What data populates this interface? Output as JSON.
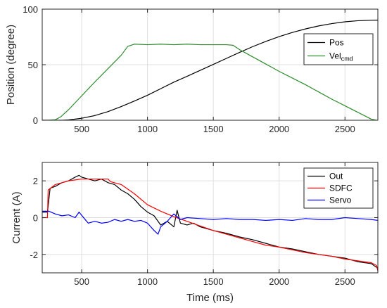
{
  "chart_data": [
    {
      "type": "line",
      "title": "",
      "xlabel": "",
      "ylabel": "Position (degree)",
      "xlim": [
        200,
        2750
      ],
      "ylim": [
        0,
        100
      ],
      "xticks": [
        500,
        1000,
        1500,
        2000,
        2500
      ],
      "yticks": [
        0,
        50,
        100
      ],
      "grid": true,
      "legend_position": "top-right",
      "series": [
        {
          "name": "Pos",
          "color": "#000000",
          "x": [
            200,
            350,
            400,
            500,
            600,
            700,
            800,
            900,
            1000,
            1100,
            1200,
            1300,
            1400,
            1500,
            1600,
            1700,
            1800,
            1900,
            2000,
            2100,
            2200,
            2300,
            2400,
            2500,
            2600,
            2700,
            2750
          ],
          "y": [
            0,
            0,
            0.3,
            1.8,
            4.2,
            7.8,
            12.3,
            17.3,
            22.5,
            28.4,
            34.3,
            39.5,
            44.9,
            50.3,
            55.7,
            61.1,
            66.3,
            71.0,
            75.3,
            79.0,
            82.2,
            84.9,
            87.0,
            88.6,
            89.6,
            90.0,
            90.1
          ]
        },
        {
          "name": "Vel",
          "name_sub": "cmd",
          "color": "#2e8b2e",
          "x": [
            200,
            250,
            300,
            340,
            400,
            500,
            600,
            700,
            800,
            850,
            900,
            1000,
            1100,
            1200,
            1300,
            1400,
            1500,
            1600,
            1650,
            1700,
            1800,
            1900,
            2000,
            2100,
            2200,
            2300,
            2400,
            2500,
            2600,
            2700,
            2740
          ],
          "y": [
            0,
            0,
            0.5,
            3,
            9.5,
            22,
            34.5,
            46.5,
            58.5,
            66.5,
            68.5,
            68,
            68.5,
            68,
            68.5,
            68,
            68,
            68,
            67.5,
            63.5,
            57,
            50.5,
            44,
            38,
            32,
            25.5,
            19,
            13,
            7,
            1,
            0
          ]
        }
      ]
    },
    {
      "type": "line",
      "title": "",
      "xlabel": "Time (ms)",
      "ylabel": "Current (A)",
      "xlim": [
        200,
        2750
      ],
      "ylim": [
        -3,
        3
      ],
      "xticks": [
        500,
        1000,
        1500,
        2000,
        2500
      ],
      "yticks": [
        -2,
        0,
        2
      ],
      "grid": true,
      "legend_position": "top-right",
      "series": [
        {
          "name": "Out",
          "color": "#000000",
          "x": [
            200,
            240,
            260,
            300,
            350,
            400,
            450,
            480,
            500,
            550,
            600,
            650,
            700,
            750,
            800,
            850,
            900,
            950,
            1000,
            1050,
            1100,
            1150,
            1200,
            1225,
            1250,
            1300,
            1350,
            1400,
            1500,
            1600,
            1700,
            1800,
            1900,
            2000,
            2100,
            2200,
            2300,
            2400,
            2500,
            2600,
            2700,
            2740,
            2750
          ],
          "y": [
            0.3,
            0.3,
            1.6,
            1.7,
            1.9,
            2.0,
            2.2,
            2.3,
            2.2,
            2.1,
            2.0,
            2.1,
            1.9,
            1.8,
            1.5,
            1.3,
            1.0,
            0.6,
            0.3,
            0.1,
            -0.4,
            -0.2,
            -0.5,
            0.4,
            -0.3,
            -0.4,
            -0.3,
            -0.5,
            -0.7,
            -0.85,
            -1.05,
            -1.2,
            -1.4,
            -1.6,
            -1.7,
            -1.85,
            -2.0,
            -2.1,
            -2.2,
            -2.4,
            -2.5,
            -2.7,
            -2.7
          ]
        },
        {
          "name": "SDFC",
          "color": "#ff0000",
          "x": [
            200,
            240,
            245,
            300,
            400,
            500,
            600,
            700,
            720,
            800,
            900,
            1000,
            1100,
            1200,
            1300,
            1400,
            1500,
            1600,
            1700,
            1800,
            1900,
            2000,
            2100,
            2200,
            2300,
            2400,
            2500,
            2600,
            2700,
            2740,
            2750
          ],
          "y": [
            0,
            0,
            1.5,
            1.8,
            2.0,
            2.1,
            2.1,
            2.1,
            1.95,
            1.8,
            1.3,
            0.7,
            0.35,
            0.05,
            -0.2,
            -0.45,
            -0.7,
            -0.9,
            -1.1,
            -1.3,
            -1.5,
            -1.6,
            -1.75,
            -1.9,
            -2.0,
            -2.1,
            -2.25,
            -2.35,
            -2.45,
            -2.6,
            -2.9
          ]
        },
        {
          "name": "Servo",
          "color": "#0000ff",
          "x": [
            200,
            250,
            300,
            350,
            400,
            450,
            480,
            520,
            550,
            600,
            650,
            700,
            750,
            800,
            850,
            900,
            950,
            1000,
            1050,
            1080,
            1100,
            1150,
            1200,
            1250,
            1300,
            1400,
            1500,
            1600,
            1700,
            1800,
            1900,
            2000,
            2100,
            2200,
            2300,
            2400,
            2500,
            2600,
            2700,
            2750
          ],
          "y": [
            0.35,
            0.35,
            0.2,
            0.1,
            0.15,
            0.0,
            0.3,
            -0.05,
            -0.3,
            -0.2,
            -0.3,
            -0.25,
            -0.1,
            -0.2,
            -0.1,
            -0.2,
            -0.15,
            -0.3,
            -0.7,
            -0.9,
            -0.5,
            -0.2,
            0.2,
            -0.1,
            0.0,
            -0.05,
            -0.1,
            -0.05,
            -0.1,
            -0.1,
            -0.15,
            -0.1,
            -0.15,
            -0.05,
            -0.1,
            -0.1,
            0.0,
            -0.05,
            -0.1,
            -0.15
          ]
        }
      ]
    }
  ]
}
